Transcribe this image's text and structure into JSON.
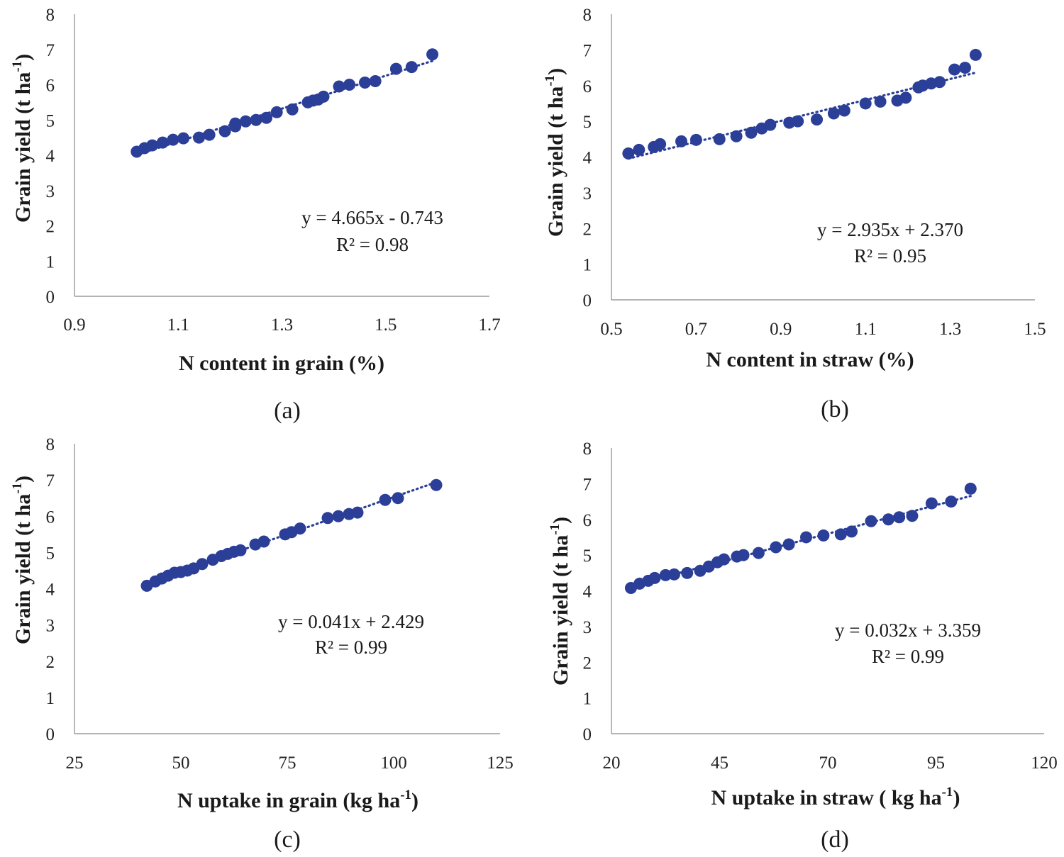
{
  "colors": {
    "points": "#2b3f98",
    "trend": "#2b3f98",
    "axis": "#888888"
  },
  "chart_data": [
    {
      "type": "scatter",
      "panel_label": "(a)",
      "xlabel": "N content in grain (%)",
      "ylabel_main": "Grain yield (t ha",
      "ylabel_sup": "-1",
      "ylabel_end": ")",
      "xlim": [
        0.9,
        1.7
      ],
      "ylim": [
        0,
        8
      ],
      "xticks": [
        "0.9",
        "1.1",
        "1.3",
        "1.5",
        "1.7"
      ],
      "yticks": [
        "0",
        "1",
        "2",
        "3",
        "4",
        "5",
        "6",
        "7",
        "8"
      ],
      "equation": "y = 4.665x - 0.743",
      "r2": "R² = 0.98",
      "trend": {
        "slope": 4.665,
        "intercept": -0.743,
        "x": [
          1.02,
          1.59
        ]
      },
      "x": [
        1.02,
        1.035,
        1.05,
        1.07,
        1.09,
        1.11,
        1.14,
        1.16,
        1.19,
        1.21,
        1.21,
        1.23,
        1.25,
        1.27,
        1.29,
        1.32,
        1.35,
        1.36,
        1.37,
        1.38,
        1.41,
        1.43,
        1.46,
        1.48,
        1.52,
        1.55,
        1.59
      ],
      "y": [
        4.1,
        4.2,
        4.28,
        4.36,
        4.44,
        4.48,
        4.5,
        4.58,
        4.68,
        4.82,
        4.9,
        4.96,
        5.0,
        5.06,
        5.22,
        5.3,
        5.5,
        5.55,
        5.58,
        5.66,
        5.95,
        6.0,
        6.06,
        6.1,
        6.45,
        6.5,
        6.86
      ]
    },
    {
      "type": "scatter",
      "panel_label": "(b)",
      "xlabel": "N  content in straw (%)",
      "ylabel_main": "Grain yield (t ha",
      "ylabel_sup": "-1",
      "ylabel_end": ")",
      "xlim": [
        0.5,
        1.5
      ],
      "ylim": [
        0,
        8
      ],
      "xticks": [
        "0.5",
        "0.7",
        "0.9",
        "1.1",
        "1.3",
        "1.5"
      ],
      "yticks": [
        "0",
        "1",
        "2",
        "3",
        "4",
        "5",
        "6",
        "7",
        "8"
      ],
      "equation": "y = 2.935x + 2.370",
      "r2": "R² = 0.95",
      "trend": {
        "slope": 2.935,
        "intercept": 2.37,
        "x": [
          0.54,
          1.36
        ]
      },
      "x": [
        0.54,
        0.565,
        0.6,
        0.615,
        0.665,
        0.7,
        0.755,
        0.795,
        0.83,
        0.855,
        0.875,
        0.92,
        0.94,
        0.985,
        1.025,
        1.05,
        1.1,
        1.135,
        1.175,
        1.195,
        1.225,
        1.235,
        1.255,
        1.275,
        1.31,
        1.335,
        1.36
      ],
      "y": [
        4.1,
        4.2,
        4.28,
        4.36,
        4.44,
        4.48,
        4.5,
        4.58,
        4.68,
        4.8,
        4.9,
        4.96,
        5.0,
        5.05,
        5.22,
        5.3,
        5.5,
        5.55,
        5.58,
        5.66,
        5.95,
        6.0,
        6.06,
        6.1,
        6.45,
        6.5,
        6.86
      ]
    },
    {
      "type": "scatter",
      "panel_label": "(c)",
      "xlabel_main": "N uptake in grain (kg ha",
      "xlabel_sup": "-1",
      "xlabel_end": ")",
      "ylabel_main": "Grain yield (t ha",
      "ylabel_sup": "-1",
      "ylabel_end": ")",
      "xlim": [
        25,
        125
      ],
      "ylim": [
        0,
        8
      ],
      "xticks": [
        "25",
        "50",
        "75",
        "100",
        "125"
      ],
      "yticks": [
        "0",
        "1",
        "2",
        "3",
        "4",
        "5",
        "6",
        "7",
        "8"
      ],
      "equation": "y = 0.041x + 2.429",
      "r2": "R² = 0.99",
      "trend": {
        "slope": 0.041,
        "intercept": 2.429,
        "x": [
          42,
          110
        ]
      },
      "x": [
        42,
        44,
        45.5,
        47,
        48.5,
        50,
        51.5,
        53,
        55,
        57.5,
        59.5,
        61,
        62.5,
        64,
        67.5,
        69.5,
        74.5,
        76,
        78,
        84.5,
        87,
        89.5,
        91.5,
        98,
        101,
        110
      ],
      "y": [
        4.08,
        4.2,
        4.28,
        4.36,
        4.44,
        4.46,
        4.5,
        4.56,
        4.68,
        4.8,
        4.9,
        4.96,
        5.02,
        5.06,
        5.22,
        5.3,
        5.5,
        5.56,
        5.66,
        5.95,
        6.0,
        6.06,
        6.1,
        6.45,
        6.5,
        6.86
      ]
    },
    {
      "type": "scatter",
      "panel_label": "(d)",
      "xlabel_main": "N uptake in straw ( kg ha",
      "xlabel_sup": "-1",
      "xlabel_end": ")",
      "ylabel_main": "Grain yield (t ha",
      "ylabel_sup": "-1",
      "ylabel_end": ")",
      "xlim": [
        20,
        120
      ],
      "ylim": [
        0,
        8
      ],
      "xticks": [
        "20",
        "45",
        "70",
        "95",
        "120"
      ],
      "yticks": [
        "0",
        "1",
        "2",
        "3",
        "4",
        "5",
        "6",
        "7",
        "8"
      ],
      "equation": "y = 0.032x + 3.359",
      "r2": "R² = 0.99",
      "trend": {
        "slope": 0.032,
        "intercept": 3.359,
        "x": [
          24.5,
          103
        ]
      },
      "x": [
        24.5,
        26.5,
        28.5,
        30,
        32.5,
        34.5,
        37.5,
        40.5,
        42.5,
        44.5,
        46,
        49,
        50.5,
        54,
        58,
        61,
        65,
        69,
        73,
        75.5,
        80,
        84,
        86.5,
        89.5,
        94,
        98.5,
        103
      ],
      "y": [
        4.08,
        4.2,
        4.28,
        4.36,
        4.44,
        4.46,
        4.5,
        4.56,
        4.68,
        4.8,
        4.88,
        4.96,
        5.0,
        5.06,
        5.22,
        5.3,
        5.5,
        5.55,
        5.58,
        5.66,
        5.95,
        6.0,
        6.06,
        6.1,
        6.45,
        6.5,
        6.86
      ]
    }
  ]
}
